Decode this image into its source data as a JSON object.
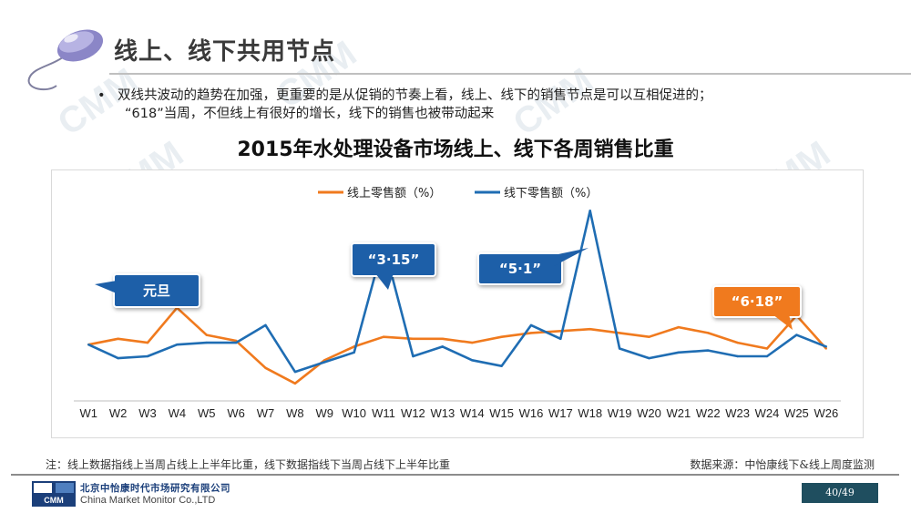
{
  "slide": {
    "title": "线上、线下共用节点",
    "bullet_lines": [
      "双线共波动的趋势在加强，更重要的是从促销的节奏上看，线上、线下的销售节点是可以互相促进的；",
      "“618”当周，不但线上有很好的增长，线下的销售也被带动起来"
    ],
    "watermark": "CMM"
  },
  "chart_data": {
    "type": "line",
    "title": "2015年水处理设备市场线上、线下各周销售比重",
    "categories": [
      "W1",
      "W2",
      "W3",
      "W4",
      "W5",
      "W6",
      "W7",
      "W8",
      "W9",
      "W10",
      "W11",
      "W12",
      "W13",
      "W14",
      "W15",
      "W16",
      "W17",
      "W18",
      "W19",
      "W20",
      "W21",
      "W22",
      "W23",
      "W24",
      "W25",
      "W26"
    ],
    "series": [
      {
        "name": "线上零售额（%）",
        "color": "#f07a1e",
        "values": [
          3.9,
          4.2,
          4.0,
          5.8,
          4.4,
          4.1,
          2.7,
          1.9,
          3.1,
          3.8,
          4.3,
          4.2,
          4.2,
          4.0,
          4.3,
          4.5,
          4.6,
          4.7,
          4.5,
          4.3,
          4.8,
          4.5,
          4.0,
          3.7,
          5.4,
          3.7
        ]
      },
      {
        "name": "线下零售额（%）",
        "color": "#1f6db3",
        "values": [
          3.9,
          3.2,
          3.3,
          3.9,
          4.0,
          4.0,
          4.9,
          2.5,
          3.0,
          3.5,
          9.1,
          3.3,
          3.8,
          3.1,
          2.8,
          4.9,
          4.2,
          10.8,
          3.7,
          3.2,
          3.5,
          3.6,
          3.3,
          3.3,
          4.4,
          3.8
        ]
      }
    ],
    "ylim": [
      1,
      11
    ],
    "grid": false,
    "legend_position": "top-center",
    "annotations": [
      {
        "text": "元旦",
        "anchor_week": "W1",
        "style": "blue"
      },
      {
        "text": "“3·15”",
        "anchor_week": "W11",
        "style": "blue"
      },
      {
        "text": "“5·1”",
        "anchor_week": "W18",
        "style": "blue"
      },
      {
        "text": "“6·18”",
        "anchor_week": "W25",
        "style": "orange"
      }
    ]
  },
  "footer": {
    "note": "注：线上数据指线上当周占线上上半年比重，线下数据指线下当周占线下上半年比重",
    "source": "数据来源：中怡康线下&线上周度监测",
    "company_cn": "北京中怡康时代市场研究有限公司",
    "company_en": "China Market Monitor Co.,LTD",
    "logo_text": "CMM",
    "page": "40/49"
  },
  "colors": {
    "accent_blue": "#1d5fa8",
    "accent_orange": "#f07a1e",
    "page_box": "#1f4e5f"
  }
}
